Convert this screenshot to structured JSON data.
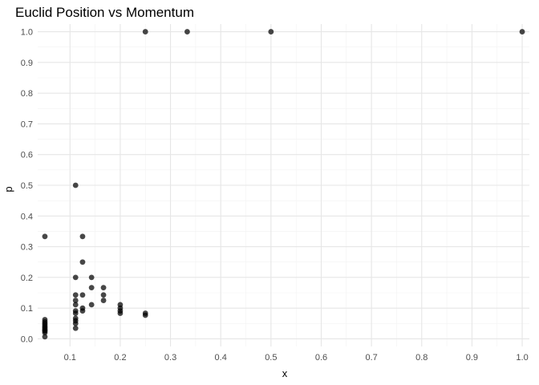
{
  "chart_data": {
    "type": "scatter",
    "title": "Euclid Position vs Momentum",
    "xlabel": "x",
    "ylabel": "p",
    "xlim": [
      0.0357,
      1.0143
    ],
    "ylim": [
      -0.025,
      1.025
    ],
    "x_ticks": [
      "0.1",
      "0.2",
      "0.3",
      "0.4",
      "0.5",
      "0.6",
      "0.7",
      "0.8",
      "0.9",
      "1.0"
    ],
    "y_ticks": [
      "0.0",
      "0.1",
      "0.2",
      "0.3",
      "0.4",
      "0.5",
      "0.6",
      "0.7",
      "0.8",
      "0.9",
      "1.0"
    ],
    "grid": true,
    "legend": "none",
    "point_color": "#000000",
    "points": [
      [
        1.0,
        1.0
      ],
      [
        0.5,
        1.0
      ],
      [
        0.3333,
        1.0
      ],
      [
        0.25,
        1.0
      ],
      [
        0.1111,
        0.5
      ],
      [
        0.05,
        0.3333
      ],
      [
        0.125,
        0.3333
      ],
      [
        0.125,
        0.25
      ],
      [
        0.1111,
        0.2
      ],
      [
        0.1429,
        0.2
      ],
      [
        0.1429,
        0.1667
      ],
      [
        0.1667,
        0.1667
      ],
      [
        0.1111,
        0.1429
      ],
      [
        0.125,
        0.1429
      ],
      [
        0.1667,
        0.1429
      ],
      [
        0.1667,
        0.125
      ],
      [
        0.1111,
        0.125
      ],
      [
        0.1111,
        0.1111
      ],
      [
        0.1429,
        0.1111
      ],
      [
        0.2,
        0.1111
      ],
      [
        0.2,
        0.1
      ],
      [
        0.2,
        0.0909
      ],
      [
        0.2,
        0.0833
      ],
      [
        0.125,
        0.1
      ],
      [
        0.125,
        0.0909
      ],
      [
        0.1111,
        0.0909
      ],
      [
        0.1111,
        0.0833
      ],
      [
        0.1111,
        0.0667
      ],
      [
        0.1111,
        0.0588
      ],
      [
        0.1111,
        0.05
      ],
      [
        0.1111,
        0.0345
      ],
      [
        0.25,
        0.0833
      ],
      [
        0.25,
        0.0769
      ],
      [
        0.05,
        0.0625
      ],
      [
        0.05,
        0.0556
      ],
      [
        0.05,
        0.05
      ],
      [
        0.05,
        0.0455
      ],
      [
        0.05,
        0.04
      ],
      [
        0.05,
        0.0357
      ],
      [
        0.05,
        0.0313
      ],
      [
        0.05,
        0.0278
      ],
      [
        0.05,
        0.025
      ],
      [
        0.05,
        0.02
      ],
      [
        0.05,
        0.0067
      ]
    ]
  }
}
